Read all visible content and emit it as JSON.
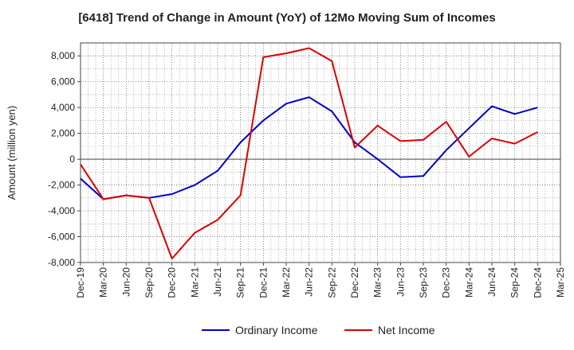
{
  "chart_data": {
    "type": "line",
    "title": "[6418]  Trend of Change in Amount (YoY) of 12Mo Moving Sum of Incomes",
    "xlabel": "",
    "ylabel": "Amount (million yen)",
    "ylim": [
      -8000,
      9000
    ],
    "yticks": [
      -8000,
      -6000,
      -4000,
      -2000,
      0,
      2000,
      4000,
      6000,
      8000
    ],
    "ytick_labels": [
      "-8,000",
      "-6,000",
      "-4,000",
      "-2,000",
      "0",
      "2,000",
      "4,000",
      "6,000",
      "8,000"
    ],
    "categories": [
      "Dec-19",
      "Mar-20",
      "Jun-20",
      "Sep-20",
      "Dec-20",
      "Mar-21",
      "Jun-21",
      "Sep-21",
      "Dec-21",
      "Mar-22",
      "Jun-22",
      "Sep-22",
      "Dec-22",
      "Mar-23",
      "Jun-23",
      "Sep-23",
      "Dec-23",
      "Mar-24",
      "Jun-24",
      "Sep-24",
      "Dec-24",
      "Mar-25"
    ],
    "grid": true,
    "legend_position": "bottom",
    "series": [
      {
        "name": "Ordinary Income",
        "color": "#0000cc",
        "values": [
          -1500,
          -3100,
          -2800,
          -3000,
          -2700,
          -2000,
          -900,
          1300,
          3000,
          4300,
          4800,
          3700,
          1300,
          0,
          -1400,
          -1300,
          700,
          2400,
          4100,
          3500,
          4000,
          null
        ]
      },
      {
        "name": "Net Income",
        "color": "#dd0000",
        "values": [
          -400,
          -3100,
          -2800,
          -3000,
          -7700,
          -5700,
          -4700,
          -2800,
          7900,
          8200,
          8600,
          7600,
          900,
          2600,
          1400,
          1500,
          2900,
          200,
          1600,
          1200,
          2100,
          null
        ]
      }
    ]
  }
}
